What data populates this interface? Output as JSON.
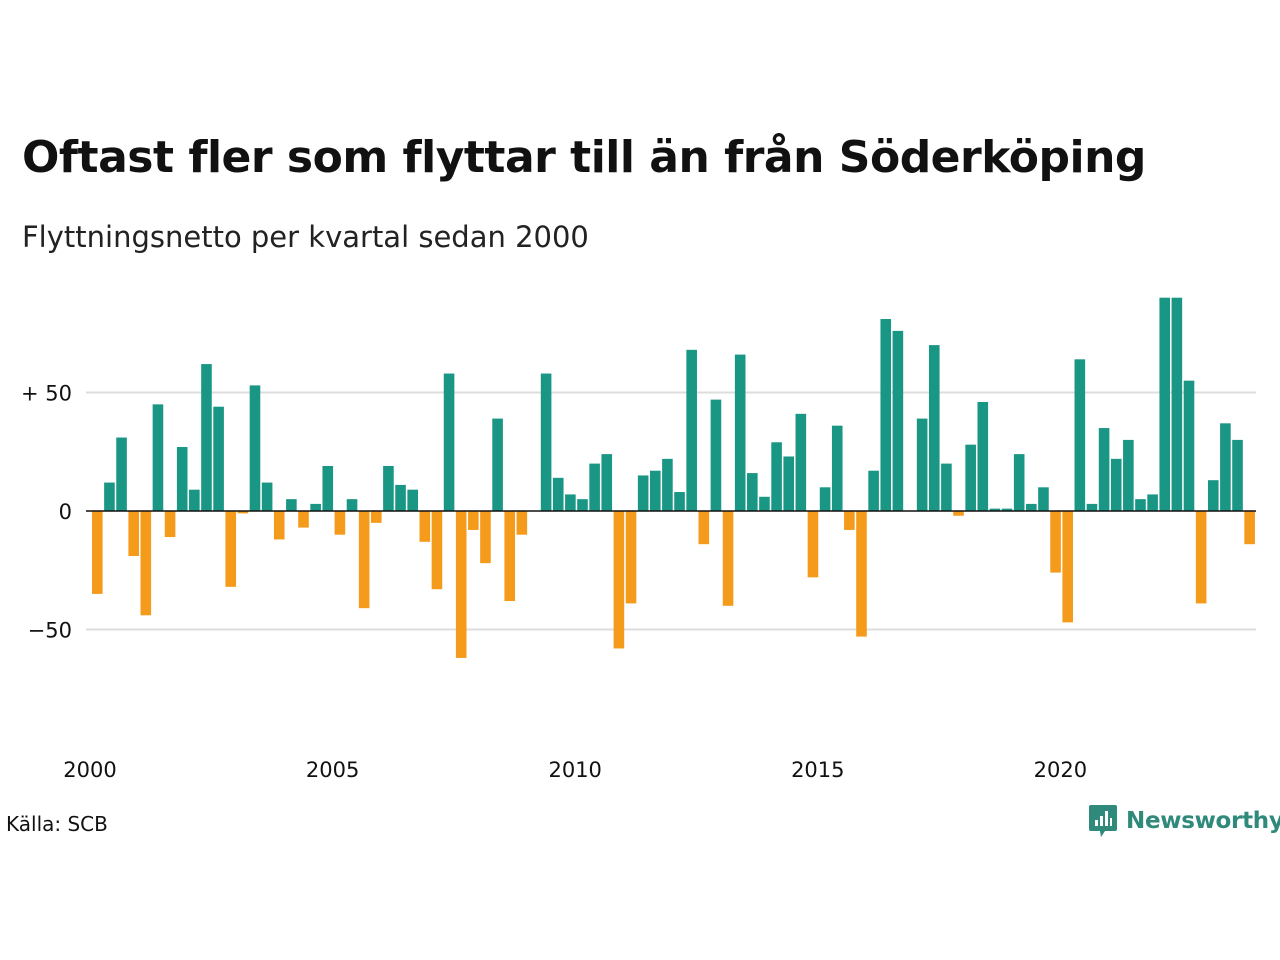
{
  "header": {
    "title": "Oftast fler som flyttar till än från Söderköping",
    "subtitle": "Flyttningsnetto per kvartal sedan 2000"
  },
  "footer": {
    "source": "Källa: SCB",
    "logo_text": "Newsworthy",
    "logo_icon": "bar-chart-speech-bubble-icon"
  },
  "colors": {
    "positive": "#1a9685",
    "negative": "#f59b1c",
    "grid": "#dddddd",
    "zero_line": "#111111",
    "logo": "#2f8a7c"
  },
  "chart_data": {
    "type": "bar",
    "title": "Oftast fler som flyttar till än från Söderköping",
    "subtitle": "Flyttningsnetto per kvartal sedan 2000",
    "xlabel": "",
    "ylabel": "",
    "x_start": "2000 Q1",
    "x_tick_labels": [
      "2000",
      "2005",
      "2010",
      "2015",
      "2020"
    ],
    "y_ticks": [
      50,
      0,
      -50
    ],
    "y_tick_labels": [
      "+ 50",
      "0",
      "−50"
    ],
    "ylim": [
      -80,
      93
    ],
    "grid": true,
    "values": [
      -35,
      12,
      31,
      -19,
      -44,
      45,
      -11,
      27,
      9,
      62,
      44,
      -32,
      -1,
      53,
      12,
      -12,
      5,
      -7,
      3,
      19,
      -10,
      5,
      -41,
      -5,
      19,
      11,
      9,
      -13,
      -33,
      58,
      -62,
      -8,
      -22,
      39,
      -38,
      -10,
      0,
      58,
      14,
      7,
      5,
      20,
      24,
      -58,
      -39,
      15,
      17,
      22,
      8,
      68,
      -14,
      47,
      -40,
      66,
      16,
      6,
      29,
      23,
      41,
      -28,
      10,
      36,
      -8,
      -53,
      17,
      81,
      76,
      0,
      39,
      70,
      20,
      -2,
      28,
      46,
      1,
      1,
      24,
      3,
      10,
      -26,
      -47,
      64,
      3,
      35,
      22,
      30,
      5,
      7,
      90,
      90,
      55,
      -39,
      13,
      37,
      30,
      -14
    ]
  }
}
